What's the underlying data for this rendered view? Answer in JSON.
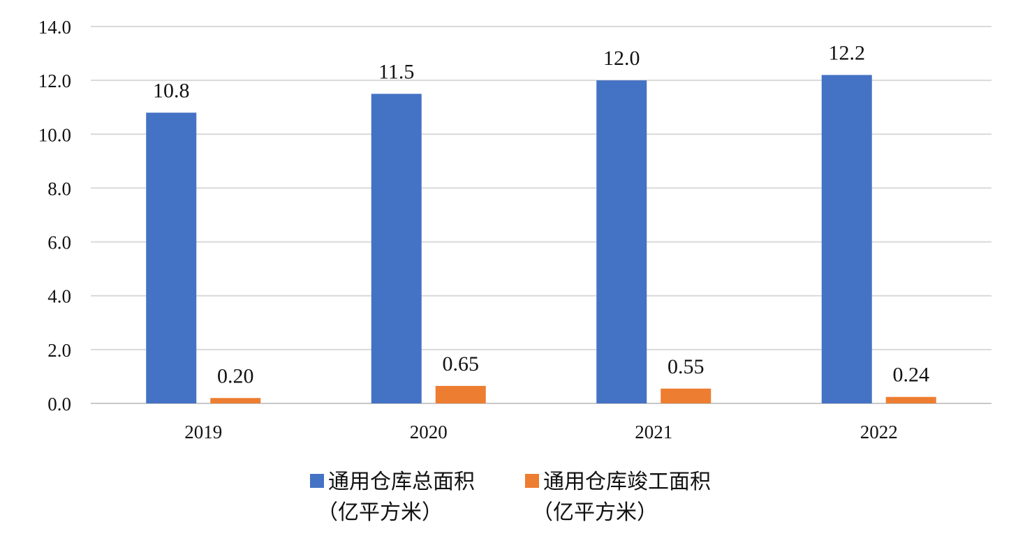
{
  "chart_data": {
    "type": "bar",
    "title": "",
    "xlabel": "",
    "ylabel": "",
    "categories": [
      "2019",
      "2020",
      "2021",
      "2022"
    ],
    "series": [
      {
        "name": "通用仓库总面积（亿平方米）",
        "legend_lines": [
          "通用仓库总面积",
          "（亿平方米）"
        ],
        "color": "#4472C4",
        "values": [
          10.8,
          11.5,
          12.0,
          12.2
        ],
        "labels": [
          "10.8",
          "11.5",
          "12.0",
          "12.2"
        ]
      },
      {
        "name": "通用仓库竣工面积（亿平方米）",
        "legend_lines": [
          "通用仓库竣工面积",
          "（亿平方米）"
        ],
        "color": "#ED7D31",
        "values": [
          0.2,
          0.65,
          0.55,
          0.24
        ],
        "labels": [
          "0.20",
          "0.65",
          "0.55",
          "0.24"
        ]
      }
    ],
    "ylim": [
      0,
      14
    ],
    "yticks": [
      "0.0",
      "2.0",
      "4.0",
      "6.0",
      "8.0",
      "10.0",
      "12.0",
      "14.0"
    ],
    "grid": true,
    "legend_position": "bottom"
  }
}
